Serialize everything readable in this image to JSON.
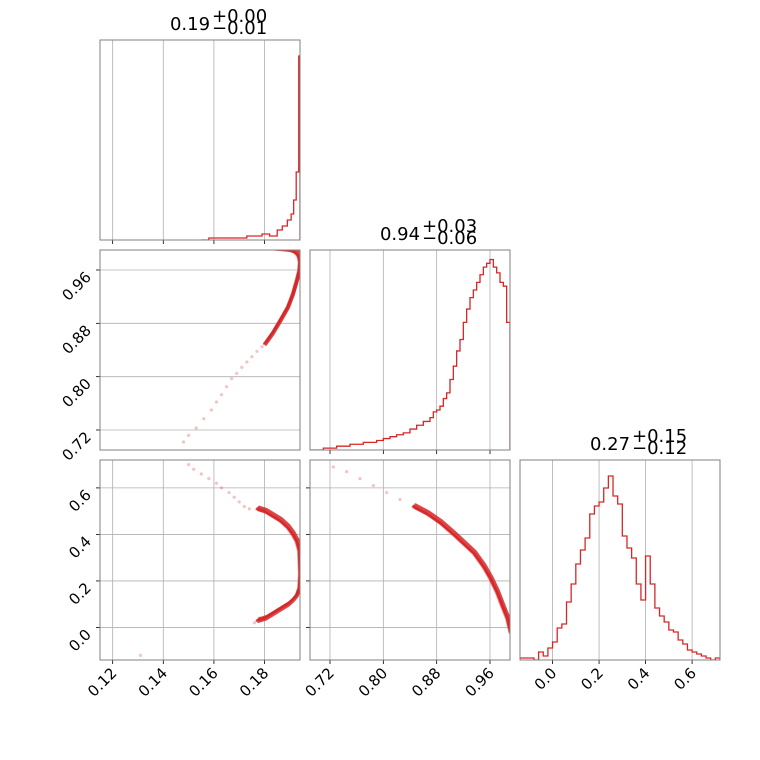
{
  "colors": {
    "series": "#d62728",
    "grid": "#b0b0b0",
    "frame": "#808080"
  },
  "chart_data": [
    {
      "type": "histogram",
      "panel": "1D marginal, parameter 1",
      "title": {
        "median": "0.19",
        "upper": "+0.00",
        "lower": "−0.01"
      },
      "xlim": [
        0.115,
        0.194
      ],
      "xticks": [
        "0.12",
        "0.14",
        "0.16",
        "0.18"
      ],
      "xtick_values": [
        0.12,
        0.14,
        0.16,
        0.18
      ],
      "xticklabels_visible": false,
      "grid": true,
      "bins": [
        0.155,
        0.158,
        0.161,
        0.164,
        0.167,
        0.17,
        0.173,
        0.176,
        0.179,
        0.182,
        0.185,
        0.187,
        0.189,
        0.1905,
        0.1915,
        0.1925,
        0.1935,
        0.194
      ],
      "counts": [
        0.0,
        0.01,
        0.01,
        0.01,
        0.01,
        0.01,
        0.02,
        0.02,
        0.03,
        0.02,
        0.05,
        0.07,
        0.1,
        0.13,
        0.2,
        0.34,
        0.92
      ],
      "ylim": [
        0,
        1
      ]
    },
    {
      "type": "histogram",
      "panel": "1D marginal, parameter 2",
      "title": {
        "median": "0.94",
        "upper": "+0.03",
        "lower": "−0.06"
      },
      "xlim": [
        0.69,
        0.99
      ],
      "xticks": [
        "0.72",
        "0.80",
        "0.88",
        "0.96"
      ],
      "xtick_values": [
        0.72,
        0.8,
        0.88,
        0.96
      ],
      "xticklabels_visible": false,
      "grid": true,
      "bins": [
        0.69,
        0.7,
        0.71,
        0.72,
        0.73,
        0.74,
        0.75,
        0.76,
        0.77,
        0.78,
        0.79,
        0.8,
        0.81,
        0.82,
        0.83,
        0.84,
        0.85,
        0.86,
        0.87,
        0.875,
        0.88,
        0.885,
        0.89,
        0.895,
        0.9,
        0.905,
        0.91,
        0.915,
        0.92,
        0.925,
        0.93,
        0.935,
        0.94,
        0.945,
        0.95,
        0.955,
        0.96,
        0.965,
        0.97,
        0.975,
        0.98,
        0.985,
        0.99
      ],
      "counts": [
        0.0,
        0.0,
        0.01,
        0.01,
        0.02,
        0.02,
        0.03,
        0.03,
        0.04,
        0.04,
        0.05,
        0.06,
        0.07,
        0.08,
        0.09,
        0.11,
        0.13,
        0.15,
        0.17,
        0.2,
        0.21,
        0.23,
        0.27,
        0.3,
        0.37,
        0.44,
        0.52,
        0.58,
        0.67,
        0.74,
        0.8,
        0.84,
        0.88,
        0.92,
        0.96,
        0.98,
        1.0,
        0.96,
        0.93,
        0.88,
        0.86,
        0.67
      ],
      "ylim": [
        0,
        1.05
      ]
    },
    {
      "type": "histogram",
      "panel": "1D marginal, parameter 3",
      "title": {
        "median": "0.27",
        "upper": "+0.15",
        "lower": "−0.12"
      },
      "xlim": [
        -0.14,
        0.72
      ],
      "xticks": [
        "0.0",
        "0.2",
        "0.4",
        "0.6"
      ],
      "xtick_values": [
        0.0,
        0.2,
        0.4,
        0.6
      ],
      "grid": true,
      "bins": [
        -0.14,
        -0.12,
        -0.1,
        -0.08,
        -0.06,
        -0.04,
        -0.02,
        0.0,
        0.02,
        0.04,
        0.06,
        0.08,
        0.1,
        0.12,
        0.14,
        0.16,
        0.18,
        0.2,
        0.22,
        0.24,
        0.26,
        0.28,
        0.3,
        0.32,
        0.34,
        0.36,
        0.38,
        0.4,
        0.42,
        0.44,
        0.46,
        0.48,
        0.5,
        0.52,
        0.54,
        0.56,
        0.58,
        0.6,
        0.62,
        0.64,
        0.66,
        0.68,
        0.7,
        0.72
      ],
      "counts": [
        0.01,
        0.01,
        0.01,
        0.0,
        0.04,
        0.02,
        0.06,
        0.09,
        0.16,
        0.18,
        0.29,
        0.38,
        0.48,
        0.55,
        0.61,
        0.73,
        0.77,
        0.79,
        0.86,
        0.92,
        0.82,
        0.78,
        0.62,
        0.56,
        0.51,
        0.38,
        0.3,
        0.52,
        0.38,
        0.26,
        0.22,
        0.19,
        0.15,
        0.14,
        0.1,
        0.08,
        0.05,
        0.04,
        0.03,
        0.02,
        0.01,
        0.0,
        0.01
      ],
      "ylim": [
        0,
        1
      ]
    },
    {
      "type": "scatter",
      "panel": "2D, parameter 1 vs parameter 2",
      "xlim": [
        0.115,
        0.194
      ],
      "ylim": [
        0.69,
        0.99
      ],
      "yticks": [
        "0.72",
        "0.80",
        "0.88",
        "0.96"
      ],
      "ytick_values": [
        0.72,
        0.8,
        0.88,
        0.96
      ],
      "grid": true,
      "samples": {
        "x": [
          0.12,
          0.124,
          0.148,
          0.15,
          0.153,
          0.156,
          0.159,
          0.161,
          0.163,
          0.165,
          0.167,
          0.169,
          0.171,
          0.173,
          0.175,
          0.177,
          0.179,
          0.18
        ],
        "y": [
          0.997,
          0.996,
          0.702,
          0.712,
          0.723,
          0.737,
          0.75,
          0.762,
          0.773,
          0.785,
          0.797,
          0.805,
          0.814,
          0.822,
          0.83,
          0.838,
          0.845,
          0.85
        ]
      },
      "contour": {
        "x": [
          0.18,
          0.183,
          0.186,
          0.189,
          0.191,
          0.1925,
          0.1935,
          0.1937,
          0.1933,
          0.1925,
          0.191,
          0.189,
          0.186,
          0.183,
          0.18
        ],
        "y": [
          0.85,
          0.866,
          0.885,
          0.905,
          0.925,
          0.945,
          0.96,
          0.972,
          0.98,
          0.985,
          0.989,
          0.991,
          0.992,
          0.993,
          0.994
        ]
      }
    },
    {
      "type": "scatter",
      "panel": "2D, parameter 1 vs parameter 3",
      "xlim": [
        0.115,
        0.194
      ],
      "ylim": [
        -0.14,
        0.72
      ],
      "xticks": [
        "0.12",
        "0.14",
        "0.16",
        "0.18"
      ],
      "xtick_values": [
        0.12,
        0.14,
        0.16,
        0.18
      ],
      "yticks": [
        "0.0",
        "0.2",
        "0.4",
        "0.6"
      ],
      "ytick_values": [
        0.0,
        0.2,
        0.4,
        0.6
      ],
      "grid": true,
      "samples": {
        "x": [
          0.131,
          0.15,
          0.152,
          0.155,
          0.158,
          0.161,
          0.163,
          0.166,
          0.168,
          0.17,
          0.172,
          0.174,
          0.176,
          0.178
        ],
        "y": [
          -0.12,
          0.7,
          0.68,
          0.66,
          0.64,
          0.62,
          0.6,
          0.58,
          0.56,
          0.54,
          0.52,
          0.51,
          0.02,
          0.04
        ]
      },
      "contour": {
        "x": [
          0.177,
          0.18,
          0.183,
          0.186,
          0.189,
          0.191,
          0.1925,
          0.1935,
          0.1938,
          0.1935,
          0.1925,
          0.191,
          0.189,
          0.186,
          0.183,
          0.18,
          0.177
        ],
        "y": [
          0.51,
          0.5,
          0.48,
          0.46,
          0.43,
          0.4,
          0.37,
          0.33,
          0.23,
          0.17,
          0.14,
          0.12,
          0.1,
          0.08,
          0.06,
          0.04,
          0.03
        ]
      }
    },
    {
      "type": "scatter",
      "panel": "2D, parameter 2 vs parameter 3",
      "xlim": [
        0.69,
        0.99
      ],
      "ylim": [
        -0.14,
        0.72
      ],
      "xticks": [
        "0.72",
        "0.80",
        "0.88",
        "0.96"
      ],
      "xtick_values": [
        0.72,
        0.8,
        0.88,
        0.96
      ],
      "grid": true,
      "samples": {
        "x": [
          0.725,
          0.745,
          0.765,
          0.785,
          0.805,
          0.825,
          0.845
        ],
        "y": [
          0.69,
          0.67,
          0.64,
          0.61,
          0.58,
          0.55,
          0.52
        ]
      },
      "contour": {
        "x": [
          0.845,
          0.865,
          0.885,
          0.905,
          0.92,
          0.935,
          0.95,
          0.96,
          0.97,
          0.978,
          0.985,
          0.99
        ],
        "y": [
          0.52,
          0.49,
          0.45,
          0.4,
          0.36,
          0.32,
          0.26,
          0.21,
          0.15,
          0.09,
          0.04,
          -0.02
        ]
      }
    }
  ]
}
